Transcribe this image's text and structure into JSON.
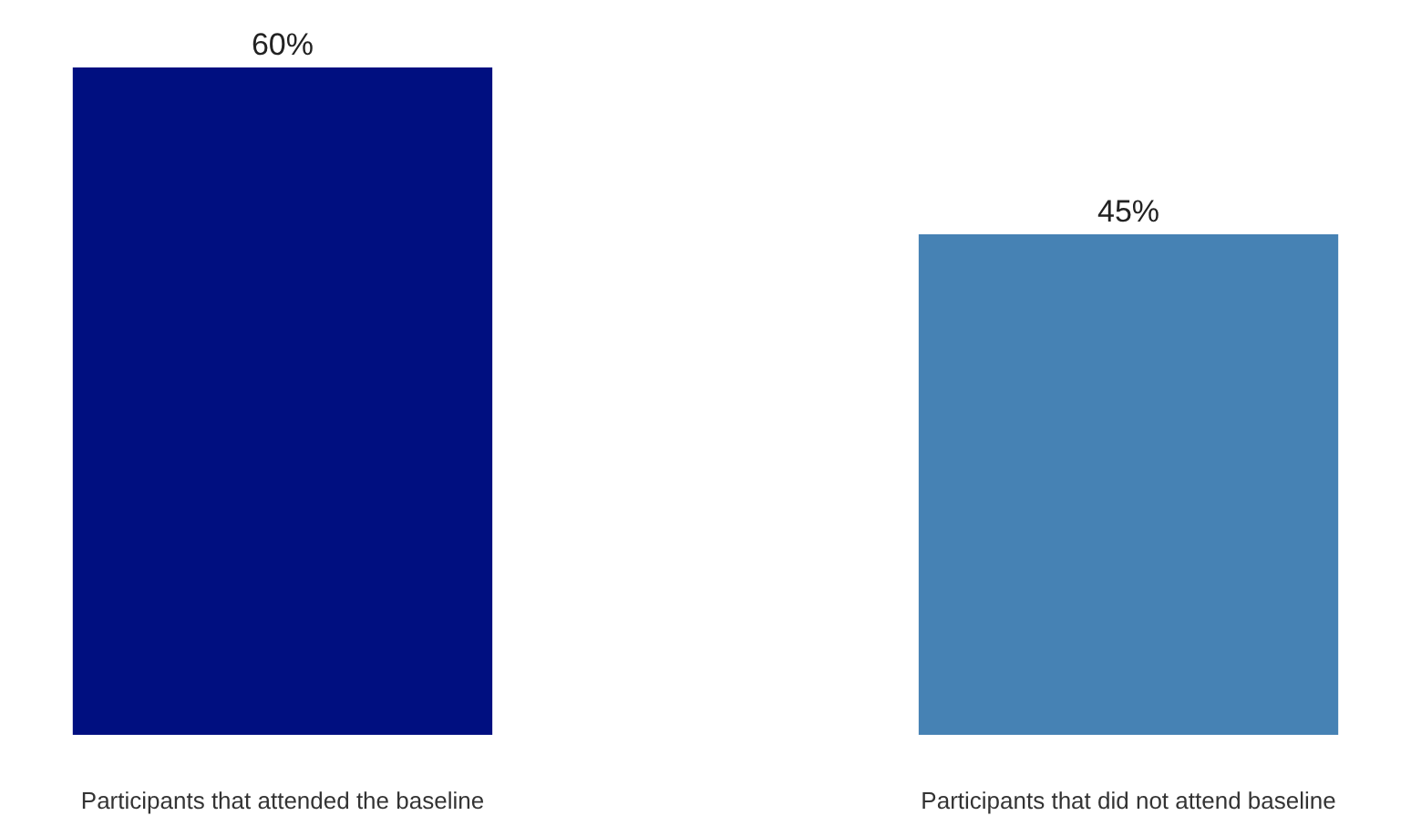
{
  "chart_data": {
    "type": "bar",
    "categories": [
      "Participants that attended the baseline",
      "Participants that did not attend baseline"
    ],
    "values": [
      60,
      45
    ],
    "colors": [
      "#000f80",
      "#4682b4"
    ],
    "value_labels": [
      "60%",
      "45%"
    ]
  }
}
